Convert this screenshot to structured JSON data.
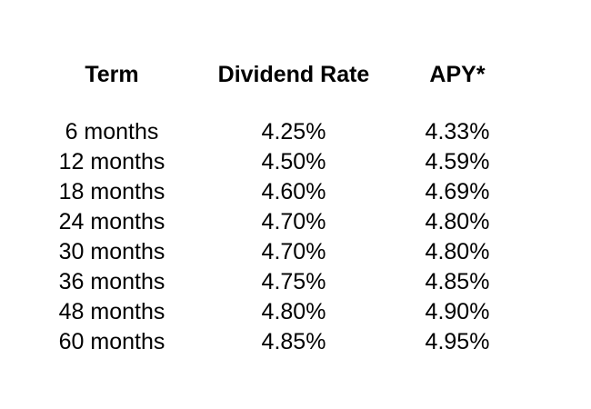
{
  "page": {
    "background_color": "#ffffff",
    "text_color": "#000000"
  },
  "chart_data": {
    "type": "table",
    "title": "",
    "columns": [
      "Term",
      "Dividend Rate",
      "APY*"
    ],
    "rows": [
      [
        "6 months",
        "4.25%",
        "4.33%"
      ],
      [
        "12 months",
        "4.50%",
        "4.59%"
      ],
      [
        "18 months",
        "4.60%",
        "4.69%"
      ],
      [
        "24 months",
        "4.70%",
        "4.80%"
      ],
      [
        "30 months",
        "4.70%",
        "4.80%"
      ],
      [
        "36 months",
        "4.75%",
        "4.85%"
      ],
      [
        "48 months",
        "4.80%",
        "4.90%"
      ],
      [
        "60 months",
        "4.85%",
        "4.95%"
      ]
    ],
    "notes": {
      "apy_footnote_marker": "*",
      "dividend_rates": [
        4.25,
        4.5,
        4.6,
        4.7,
        4.7,
        4.75,
        4.8,
        4.85
      ],
      "apy_values": [
        4.33,
        4.59,
        4.69,
        4.8,
        4.8,
        4.85,
        4.9,
        4.95
      ],
      "term_months": [
        6,
        12,
        18,
        24,
        30,
        36,
        48,
        60
      ]
    }
  }
}
